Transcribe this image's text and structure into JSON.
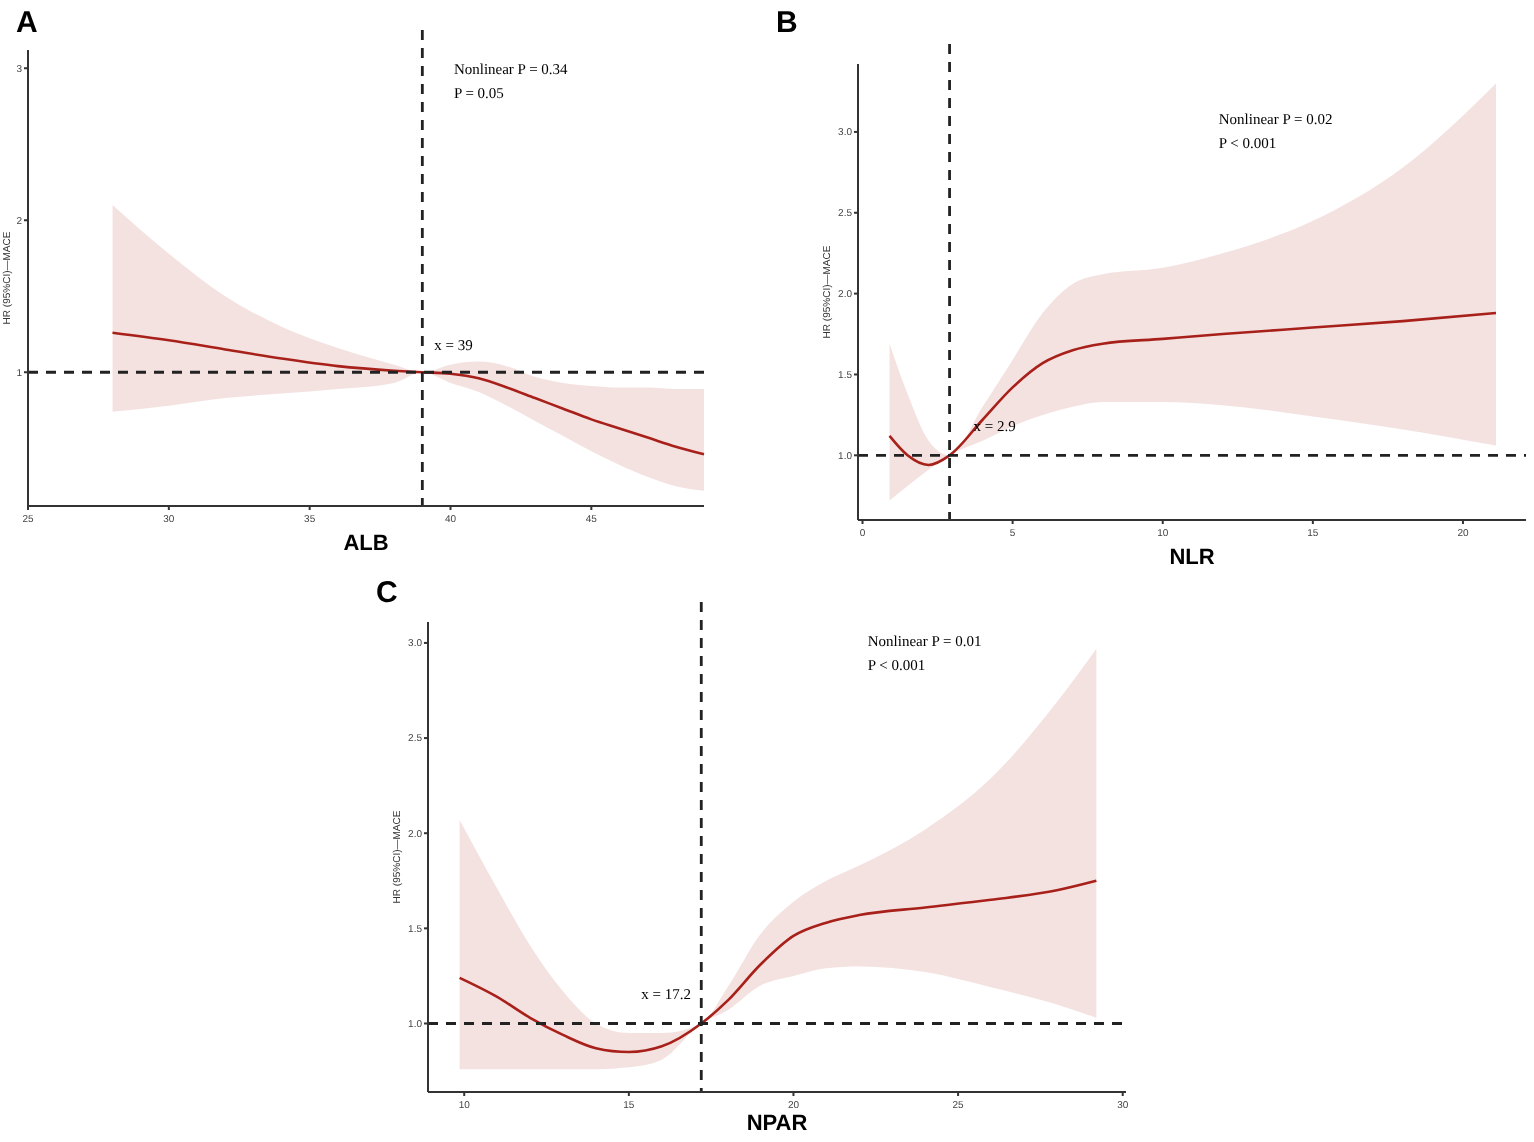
{
  "chart_data": [
    {
      "type": "line",
      "title": "A",
      "xlabel": "ALB",
      "ylabel": "HR (95%CI)—MACE",
      "xlim": [
        25,
        49
      ],
      "ylim": [
        0.12,
        3.12
      ],
      "xticks": [
        25,
        30,
        35,
        40,
        45
      ],
      "yticks": [
        1,
        2,
        3
      ],
      "grid": false,
      "line_style": "solid",
      "x": [
        28,
        30,
        32,
        34,
        36,
        38,
        39,
        40,
        41,
        42,
        43,
        44,
        45,
        46,
        47,
        48,
        49
      ],
      "series": [
        {
          "color": "#a8201a",
          "values": [
            1.26,
            1.21,
            1.15,
            1.09,
            1.04,
            1.01,
            1.0,
            0.99,
            0.96,
            0.9,
            0.83,
            0.76,
            0.69,
            0.63,
            0.57,
            0.51,
            0.46
          ],
          "upper": [
            2.1,
            1.78,
            1.5,
            1.3,
            1.16,
            1.05,
            1.0,
            1.05,
            1.07,
            1.04,
            0.97,
            0.93,
            0.91,
            0.9,
            0.9,
            0.89,
            0.89
          ],
          "lower": [
            0.74,
            0.78,
            0.83,
            0.86,
            0.89,
            0.93,
            1.0,
            0.93,
            0.87,
            0.78,
            0.68,
            0.58,
            0.48,
            0.39,
            0.31,
            0.25,
            0.22
          ]
        }
      ],
      "ref_lines": [
        {
          "axis": "x",
          "value": 39,
          "line_style": "dashed",
          "color": "#222222"
        },
        {
          "axis": "y",
          "value": 1,
          "line_style": "dashed",
          "color": "#222222"
        }
      ],
      "annotations": [
        "Nonlinear P = 0.34",
        "P = 0.05",
        {
          "text": "x = 39",
          "x": 39,
          "y": 1
        }
      ]
    },
    {
      "type": "line",
      "title": "B",
      "xlabel": "NLR",
      "ylabel": "HR (95%CI)—MACE",
      "xlim": [
        -0.15,
        22.1
      ],
      "ylim": [
        0.6,
        3.42
      ],
      "xticks": [
        0,
        5,
        10,
        15,
        20
      ],
      "yticks": [
        {
          "value": 1,
          "label": "1.0"
        },
        {
          "value": 1.5,
          "label": "1.5"
        },
        {
          "value": 2,
          "label": "2.0"
        },
        {
          "value": 2.5,
          "label": "2.5"
        },
        {
          "value": 3,
          "label": "3.0"
        }
      ],
      "grid": false,
      "line_style": "solid",
      "x": [
        0.9,
        1.5,
        2.2,
        2.9,
        4,
        5,
        6,
        7,
        8,
        10,
        12,
        15,
        18,
        21.1
      ],
      "series": [
        {
          "color": "#a8201a",
          "values": [
            1.12,
            1.0,
            0.94,
            1.0,
            1.22,
            1.42,
            1.57,
            1.65,
            1.69,
            1.72,
            1.75,
            1.79,
            1.83,
            1.88
          ],
          "upper": [
            1.69,
            1.38,
            1.09,
            1.0,
            1.3,
            1.59,
            1.88,
            2.06,
            2.12,
            2.16,
            2.25,
            2.45,
            2.78,
            3.3
          ],
          "lower": [
            0.72,
            0.81,
            0.91,
            1.0,
            1.09,
            1.18,
            1.25,
            1.3,
            1.33,
            1.33,
            1.31,
            1.24,
            1.16,
            1.06
          ]
        }
      ],
      "ref_lines": [
        {
          "axis": "x",
          "value": 2.9,
          "line_style": "dashed",
          "color": "#222222"
        },
        {
          "axis": "y",
          "value": 1,
          "line_style": "dashed",
          "color": "#222222"
        }
      ],
      "annotations": [
        "Nonlinear P = 0.02",
        "P < 0.001",
        {
          "text": "x = 2.9",
          "x": 2.9,
          "y": 1
        }
      ]
    },
    {
      "type": "line",
      "title": "C",
      "xlabel": "NPAR",
      "ylabel": "HR (95%CI)—MACE",
      "xlim": [
        8.9,
        30.1
      ],
      "ylim": [
        0.64,
        3.11
      ],
      "xticks": [
        10,
        15,
        20,
        25,
        30
      ],
      "yticks": [
        {
          "value": 1,
          "label": "1.0"
        },
        {
          "value": 1.5,
          "label": "1.5"
        },
        {
          "value": 2,
          "label": "2.0"
        },
        {
          "value": 2.5,
          "label": "2.5"
        },
        {
          "value": 3,
          "label": "3.0"
        }
      ],
      "grid": false,
      "line_style": "solid",
      "x": [
        9.86,
        11,
        12,
        13,
        14,
        15,
        16,
        17.2,
        18,
        19,
        20,
        21,
        22,
        24,
        26,
        28,
        29.2
      ],
      "series": [
        {
          "color": "#a8201a",
          "values": [
            1.24,
            1.14,
            1.03,
            0.94,
            0.87,
            0.85,
            0.88,
            1.0,
            1.12,
            1.31,
            1.46,
            1.53,
            1.57,
            1.61,
            1.65,
            1.7,
            1.75
          ],
          "upper": [
            2.07,
            1.71,
            1.41,
            1.17,
            1.0,
            0.95,
            0.95,
            1.0,
            1.19,
            1.47,
            1.64,
            1.75,
            1.83,
            2.02,
            2.29,
            2.69,
            2.97
          ],
          "lower": [
            0.76,
            0.76,
            0.76,
            0.76,
            0.76,
            0.77,
            0.81,
            1.0,
            1.07,
            1.2,
            1.25,
            1.29,
            1.3,
            1.27,
            1.19,
            1.1,
            1.03
          ]
        }
      ],
      "ref_lines": [
        {
          "axis": "x",
          "value": 17.2,
          "line_style": "dashed",
          "color": "#222222"
        },
        {
          "axis": "y",
          "value": 1,
          "line_style": "dashed",
          "color": "#222222"
        }
      ],
      "annotations": [
        "Nonlinear P = 0.01",
        "P < 0.001",
        {
          "text": "x = 17.2",
          "x": 17.2,
          "y": 1
        }
      ]
    }
  ]
}
